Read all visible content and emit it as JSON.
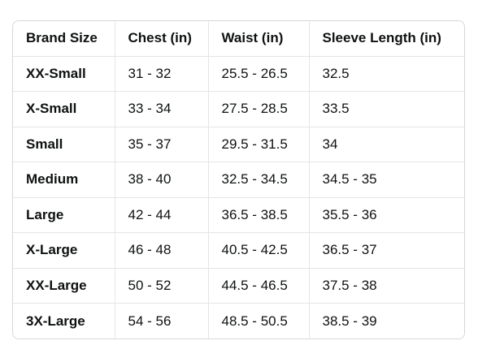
{
  "size_chart": {
    "headers": [
      "Brand Size",
      "Chest (in)",
      "Waist (in)",
      "Sleeve Length (in)"
    ],
    "rows": [
      [
        "XX-Small",
        "31 - 32",
        "25.5 - 26.5",
        "32.5"
      ],
      [
        "X-Small",
        "33 - 34",
        "27.5 - 28.5",
        "33.5"
      ],
      [
        "Small",
        "35 - 37",
        "29.5 - 31.5",
        "34"
      ],
      [
        "Medium",
        "38 - 40",
        "32.5 - 34.5",
        "34.5 - 35"
      ],
      [
        "Large",
        "42 - 44",
        "36.5 - 38.5",
        "35.5 - 36"
      ],
      [
        "X-Large",
        "46 - 48",
        "40.5 - 42.5",
        "36.5 - 37"
      ],
      [
        "XX-Large",
        "50 - 52",
        "44.5 - 46.5",
        "37.5 - 38"
      ],
      [
        "3X-Large",
        "54 - 56",
        "48.5 - 50.5",
        "38.5 - 39"
      ]
    ]
  }
}
